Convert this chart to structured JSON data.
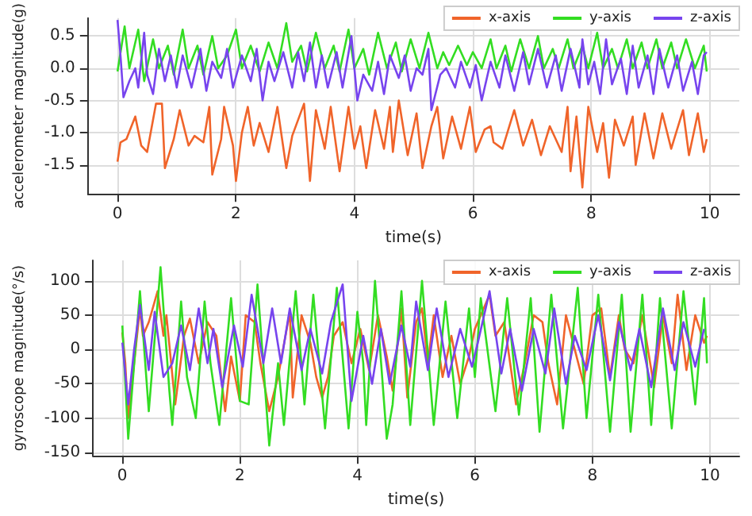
{
  "chart_data": [
    {
      "type": "line",
      "xlabel": "time(s)",
      "ylabel": "accelerometer magnitude(g)",
      "xlim": [
        -0.5,
        10.5
      ],
      "xticks": [
        0,
        2,
        4,
        6,
        8,
        10
      ],
      "ylim": [
        -1.95,
        0.78
      ],
      "yticks": [
        {
          "value": -1.5,
          "label": "-1.5"
        },
        {
          "value": -1,
          "label": "-1.0"
        },
        {
          "value": -0.5,
          "label": "-0.5"
        },
        {
          "value": 0,
          "label": "0.0"
        },
        {
          "value": 0.5,
          "label": "0.5"
        }
      ],
      "grid": true,
      "legend": "top right",
      "series": [
        {
          "name": "x-axis",
          "color": "#f0642a",
          "x": [
            0,
            0.05,
            0.15,
            0.3,
            0.4,
            0.5,
            0.65,
            0.75,
            0.8,
            0.95,
            1.05,
            1.2,
            1.3,
            1.45,
            1.55,
            1.6,
            1.75,
            1.8,
            1.95,
            2.0,
            2.1,
            2.2,
            2.3,
            2.4,
            2.55,
            2.7,
            2.85,
            2.95,
            3.15,
            3.25,
            3.35,
            3.5,
            3.6,
            3.75,
            3.9,
            4.0,
            4.1,
            4.2,
            4.35,
            4.5,
            4.6,
            4.65,
            4.75,
            4.9,
            5.05,
            5.15,
            5.3,
            5.4,
            5.5,
            5.65,
            5.8,
            5.95,
            6.05,
            6.2,
            6.3,
            6.35,
            6.5,
            6.7,
            6.85,
            7.0,
            7.15,
            7.3,
            7.5,
            7.6,
            7.65,
            7.75,
            7.85,
            7.95,
            8.1,
            8.2,
            8.3,
            8.4,
            8.55,
            8.7,
            8.75,
            8.9,
            9.05,
            9.2,
            9.35,
            9.55,
            9.65,
            9.8,
            9.9,
            9.95
          ],
          "values": [
            -1.45,
            -1.15,
            -1.1,
            -0.75,
            -1.2,
            -1.3,
            -0.55,
            -0.55,
            -1.55,
            -1.1,
            -0.65,
            -1.2,
            -1.05,
            -1.15,
            -0.6,
            -1.65,
            -1.1,
            -0.6,
            -1.2,
            -1.75,
            -1.0,
            -0.6,
            -1.2,
            -0.85,
            -1.3,
            -0.6,
            -1.55,
            -1.05,
            -0.55,
            -1.75,
            -0.65,
            -1.25,
            -0.6,
            -1.6,
            -0.6,
            -1.25,
            -0.9,
            -1.55,
            -0.65,
            -1.25,
            -0.6,
            -1.3,
            -0.5,
            -1.35,
            -0.7,
            -1.55,
            -0.9,
            -0.6,
            -1.4,
            -0.75,
            -1.25,
            -0.6,
            -1.3,
            -0.95,
            -0.9,
            -1.15,
            -1.25,
            -0.65,
            -1.2,
            -0.8,
            -1.35,
            -0.9,
            -1.3,
            -0.6,
            -1.6,
            -0.75,
            -1.85,
            -0.6,
            -1.3,
            -0.85,
            -1.7,
            -0.8,
            -1.2,
            -0.75,
            -1.5,
            -0.7,
            -1.4,
            -0.7,
            -1.25,
            -0.65,
            -1.35,
            -0.7,
            -1.3,
            -1.1
          ]
        },
        {
          "name": "y-axis",
          "color": "#33dd22",
          "x": [
            0,
            0.12,
            0.2,
            0.35,
            0.45,
            0.6,
            0.7,
            0.85,
            0.95,
            1.1,
            1.2,
            1.35,
            1.45,
            1.6,
            1.7,
            1.85,
            2.0,
            2.1,
            2.25,
            2.4,
            2.55,
            2.7,
            2.85,
            2.95,
            3.1,
            3.2,
            3.35,
            3.5,
            3.65,
            3.75,
            3.9,
            4.0,
            4.15,
            4.25,
            4.4,
            4.55,
            4.7,
            4.8,
            4.95,
            5.1,
            5.25,
            5.4,
            5.5,
            5.6,
            5.75,
            5.9,
            6.0,
            6.15,
            6.3,
            6.4,
            6.55,
            6.65,
            6.8,
            6.95,
            7.1,
            7.2,
            7.35,
            7.45,
            7.6,
            7.7,
            7.85,
            7.95,
            8.1,
            8.2,
            8.35,
            8.45,
            8.6,
            8.7,
            8.85,
            8.95,
            9.1,
            9.2,
            9.35,
            9.45,
            9.6,
            9.75,
            9.9,
            9.95
          ],
          "values": [
            -0.05,
            0.65,
            0.0,
            0.6,
            -0.2,
            0.45,
            0.0,
            0.35,
            -0.1,
            0.6,
            0.0,
            0.35,
            -0.1,
            0.5,
            0.0,
            0.2,
            0.6,
            0.0,
            0.35,
            -0.05,
            0.4,
            0.0,
            0.7,
            0.1,
            0.35,
            -0.05,
            0.55,
            0.0,
            0.35,
            -0.05,
            0.6,
            0.0,
            0.3,
            -0.1,
            0.55,
            0.0,
            0.4,
            -0.05,
            0.45,
            0.0,
            0.55,
            0.0,
            0.25,
            0.05,
            0.35,
            0.05,
            0.25,
            0.0,
            0.45,
            0.0,
            0.35,
            -0.05,
            0.45,
            0.0,
            0.5,
            0.0,
            0.3,
            0.0,
            0.45,
            0.0,
            0.35,
            0.0,
            0.55,
            0.0,
            0.3,
            0.0,
            0.45,
            0.0,
            0.4,
            0.0,
            0.45,
            0.0,
            0.4,
            0.0,
            0.45,
            0.0,
            0.35,
            -0.05
          ]
        },
        {
          "name": "z-axis",
          "color": "#7744ee",
          "x": [
            0,
            0.05,
            0.1,
            0.2,
            0.3,
            0.35,
            0.45,
            0.5,
            0.6,
            0.7,
            0.8,
            0.9,
            1.0,
            1.1,
            1.25,
            1.4,
            1.5,
            1.6,
            1.75,
            1.85,
            1.95,
            2.1,
            2.25,
            2.35,
            2.45,
            2.55,
            2.65,
            2.8,
            2.95,
            3.05,
            3.15,
            3.25,
            3.35,
            3.45,
            3.55,
            3.7,
            3.8,
            3.95,
            4.05,
            4.15,
            4.3,
            4.4,
            4.5,
            4.6,
            4.75,
            4.85,
            4.95,
            5.05,
            5.15,
            5.25,
            5.3,
            5.45,
            5.55,
            5.7,
            5.8,
            5.95,
            6.05,
            6.15,
            6.3,
            6.45,
            6.55,
            6.7,
            6.85,
            6.95,
            7.1,
            7.25,
            7.4,
            7.5,
            7.65,
            7.8,
            7.85,
            7.95,
            8.05,
            8.15,
            8.25,
            8.35,
            8.5,
            8.6,
            8.7,
            8.8,
            8.95,
            9.05,
            9.15,
            9.3,
            9.45,
            9.55,
            9.7,
            9.8,
            9.9,
            9.95
          ],
          "values": [
            0.75,
            0.2,
            -0.45,
            -0.2,
            0.0,
            -0.3,
            0.55,
            -0.1,
            -0.4,
            0.3,
            -0.2,
            0.2,
            -0.3,
            0.2,
            -0.3,
            0.3,
            -0.35,
            0.1,
            -0.15,
            0.3,
            -0.3,
            0.2,
            -0.2,
            0.3,
            -0.5,
            0.1,
            -0.2,
            0.25,
            -0.3,
            0.25,
            -0.2,
            0.4,
            -0.3,
            0.2,
            -0.3,
            0.25,
            -0.3,
            0.5,
            -0.5,
            -0.1,
            -0.35,
            0.1,
            -0.4,
            0.2,
            -0.15,
            0.2,
            -0.35,
            0.0,
            -0.1,
            0.3,
            -0.65,
            -0.1,
            0.0,
            -0.3,
            0.1,
            -0.3,
            0.05,
            -0.5,
            0.1,
            -0.3,
            0.2,
            -0.35,
            0.25,
            -0.25,
            0.3,
            -0.3,
            0.2,
            -0.35,
            0.3,
            -0.3,
            0.45,
            -0.25,
            0.1,
            -0.4,
            0.45,
            -0.25,
            0.15,
            -0.4,
            0.35,
            -0.3,
            0.2,
            -0.4,
            0.3,
            -0.3,
            0.2,
            -0.35,
            0.1,
            -0.4,
            0.2,
            0.25
          ]
        }
      ]
    },
    {
      "type": "line",
      "xlabel": "time(s)",
      "ylabel": "gyroscope magnitude(°/s)",
      "xlim": [
        -0.5,
        10.5
      ],
      "xticks": [
        0,
        2,
        4,
        6,
        8,
        10
      ],
      "ylim": [
        -155,
        130
      ],
      "yticks": [
        -150,
        -100,
        -50,
        0,
        50,
        100
      ],
      "grid": true,
      "legend": "top right",
      "series": [
        {
          "name": "x-axis",
          "color": "#f0642a",
          "x": [
            0,
            0.05,
            0.1,
            0.3,
            0.35,
            0.45,
            0.6,
            0.7,
            0.75,
            0.9,
            1.05,
            1.15,
            1.3,
            1.45,
            1.6,
            1.75,
            1.85,
            2.0,
            2.1,
            2.25,
            2.35,
            2.5,
            2.65,
            2.85,
            2.9,
            3.05,
            3.2,
            3.3,
            3.4,
            3.5,
            3.6,
            3.75,
            3.9,
            4.05,
            4.2,
            4.35,
            4.5,
            4.6,
            4.75,
            4.85,
            5.0,
            5.1,
            5.2,
            5.3,
            5.45,
            5.6,
            5.75,
            5.9,
            6.0,
            6.25,
            6.35,
            6.5,
            6.7,
            6.85,
            7.0,
            7.15,
            7.25,
            7.4,
            7.55,
            7.7,
            7.85,
            8.0,
            8.15,
            8.3,
            8.45,
            8.55,
            8.7,
            8.85,
            9.05,
            9.2,
            9.35,
            9.45,
            9.6,
            9.75,
            9.9,
            9.95
          ],
          "values": [
            25,
            -20,
            -100,
            60,
            20,
            40,
            85,
            20,
            50,
            -80,
            20,
            45,
            -20,
            40,
            20,
            -90,
            -10,
            -75,
            50,
            40,
            -20,
            -90,
            -40,
            55,
            -70,
            50,
            10,
            -40,
            -70,
            -40,
            20,
            40,
            -20,
            30,
            -30,
            50,
            -10,
            -60,
            60,
            -70,
            40,
            60,
            -20,
            50,
            -40,
            20,
            -50,
            -10,
            30,
            80,
            20,
            40,
            -80,
            -20,
            50,
            40,
            -20,
            -80,
            50,
            0,
            -50,
            50,
            60,
            -40,
            50,
            0,
            -20,
            50,
            -55,
            50,
            -20,
            80,
            -30,
            50,
            10,
            20
          ]
        },
        {
          "name": "y-axis",
          "color": "#33dd22",
          "x": [
            0,
            0.1,
            0.3,
            0.45,
            0.65,
            0.8,
            0.85,
            1.0,
            1.1,
            1.25,
            1.4,
            1.5,
            1.65,
            1.85,
            2.0,
            2.15,
            2.3,
            2.5,
            2.65,
            2.75,
            2.95,
            3.1,
            3.25,
            3.45,
            3.65,
            3.85,
            4.0,
            4.1,
            4.15,
            4.3,
            4.5,
            4.6,
            4.75,
            4.9,
            5.1,
            5.3,
            5.5,
            5.7,
            5.9,
            6.0,
            6.1,
            6.35,
            6.55,
            6.75,
            6.95,
            7.1,
            7.3,
            7.5,
            7.75,
            7.9,
            8.1,
            8.3,
            8.5,
            8.65,
            8.85,
            9.0,
            9.15,
            9.35,
            9.55,
            9.75,
            9.9,
            9.95
          ],
          "values": [
            35,
            -130,
            85,
            -90,
            120,
            -60,
            -110,
            70,
            -40,
            -100,
            70,
            -20,
            -110,
            75,
            -75,
            -80,
            95,
            -140,
            -20,
            -110,
            85,
            -80,
            80,
            -115,
            90,
            -115,
            55,
            -20,
            -110,
            100,
            -130,
            -80,
            85,
            -110,
            100,
            -110,
            70,
            -100,
            60,
            -40,
            75,
            -90,
            75,
            -95,
            75,
            -120,
            80,
            -115,
            90,
            -100,
            80,
            -120,
            80,
            -120,
            80,
            -110,
            75,
            -115,
            85,
            -80,
            75,
            -20
          ]
        },
        {
          "name": "z-axis",
          "color": "#7744ee",
          "x": [
            0,
            0.1,
            0.2,
            0.3,
            0.45,
            0.55,
            0.7,
            0.85,
            1.0,
            1.15,
            1.3,
            1.45,
            1.55,
            1.7,
            1.9,
            2.05,
            2.2,
            2.4,
            2.55,
            2.7,
            2.85,
            3.05,
            3.2,
            3.4,
            3.55,
            3.75,
            3.9,
            4.1,
            4.25,
            4.4,
            4.55,
            4.75,
            4.9,
            5.0,
            5.2,
            5.35,
            5.55,
            5.75,
            5.95,
            6.05,
            6.25,
            6.45,
            6.6,
            6.8,
            7.0,
            7.2,
            7.35,
            7.55,
            7.7,
            7.9,
            8.1,
            8.3,
            8.45,
            8.65,
            8.8,
            9.0,
            9.2,
            9.4,
            9.55,
            9.75,
            9.9
          ],
          "values": [
            10,
            -80,
            0,
            65,
            -30,
            55,
            -40,
            -20,
            35,
            -30,
            60,
            -20,
            30,
            -55,
            35,
            -25,
            80,
            -20,
            60,
            -20,
            60,
            -30,
            30,
            -35,
            40,
            95,
            -75,
            20,
            -50,
            30,
            -50,
            35,
            -25,
            70,
            -30,
            60,
            -40,
            30,
            -25,
            10,
            85,
            -35,
            30,
            -60,
            30,
            -35,
            60,
            -50,
            20,
            -30,
            50,
            -45,
            40,
            -30,
            30,
            -55,
            60,
            -30,
            40,
            -25,
            30
          ]
        }
      ]
    }
  ]
}
